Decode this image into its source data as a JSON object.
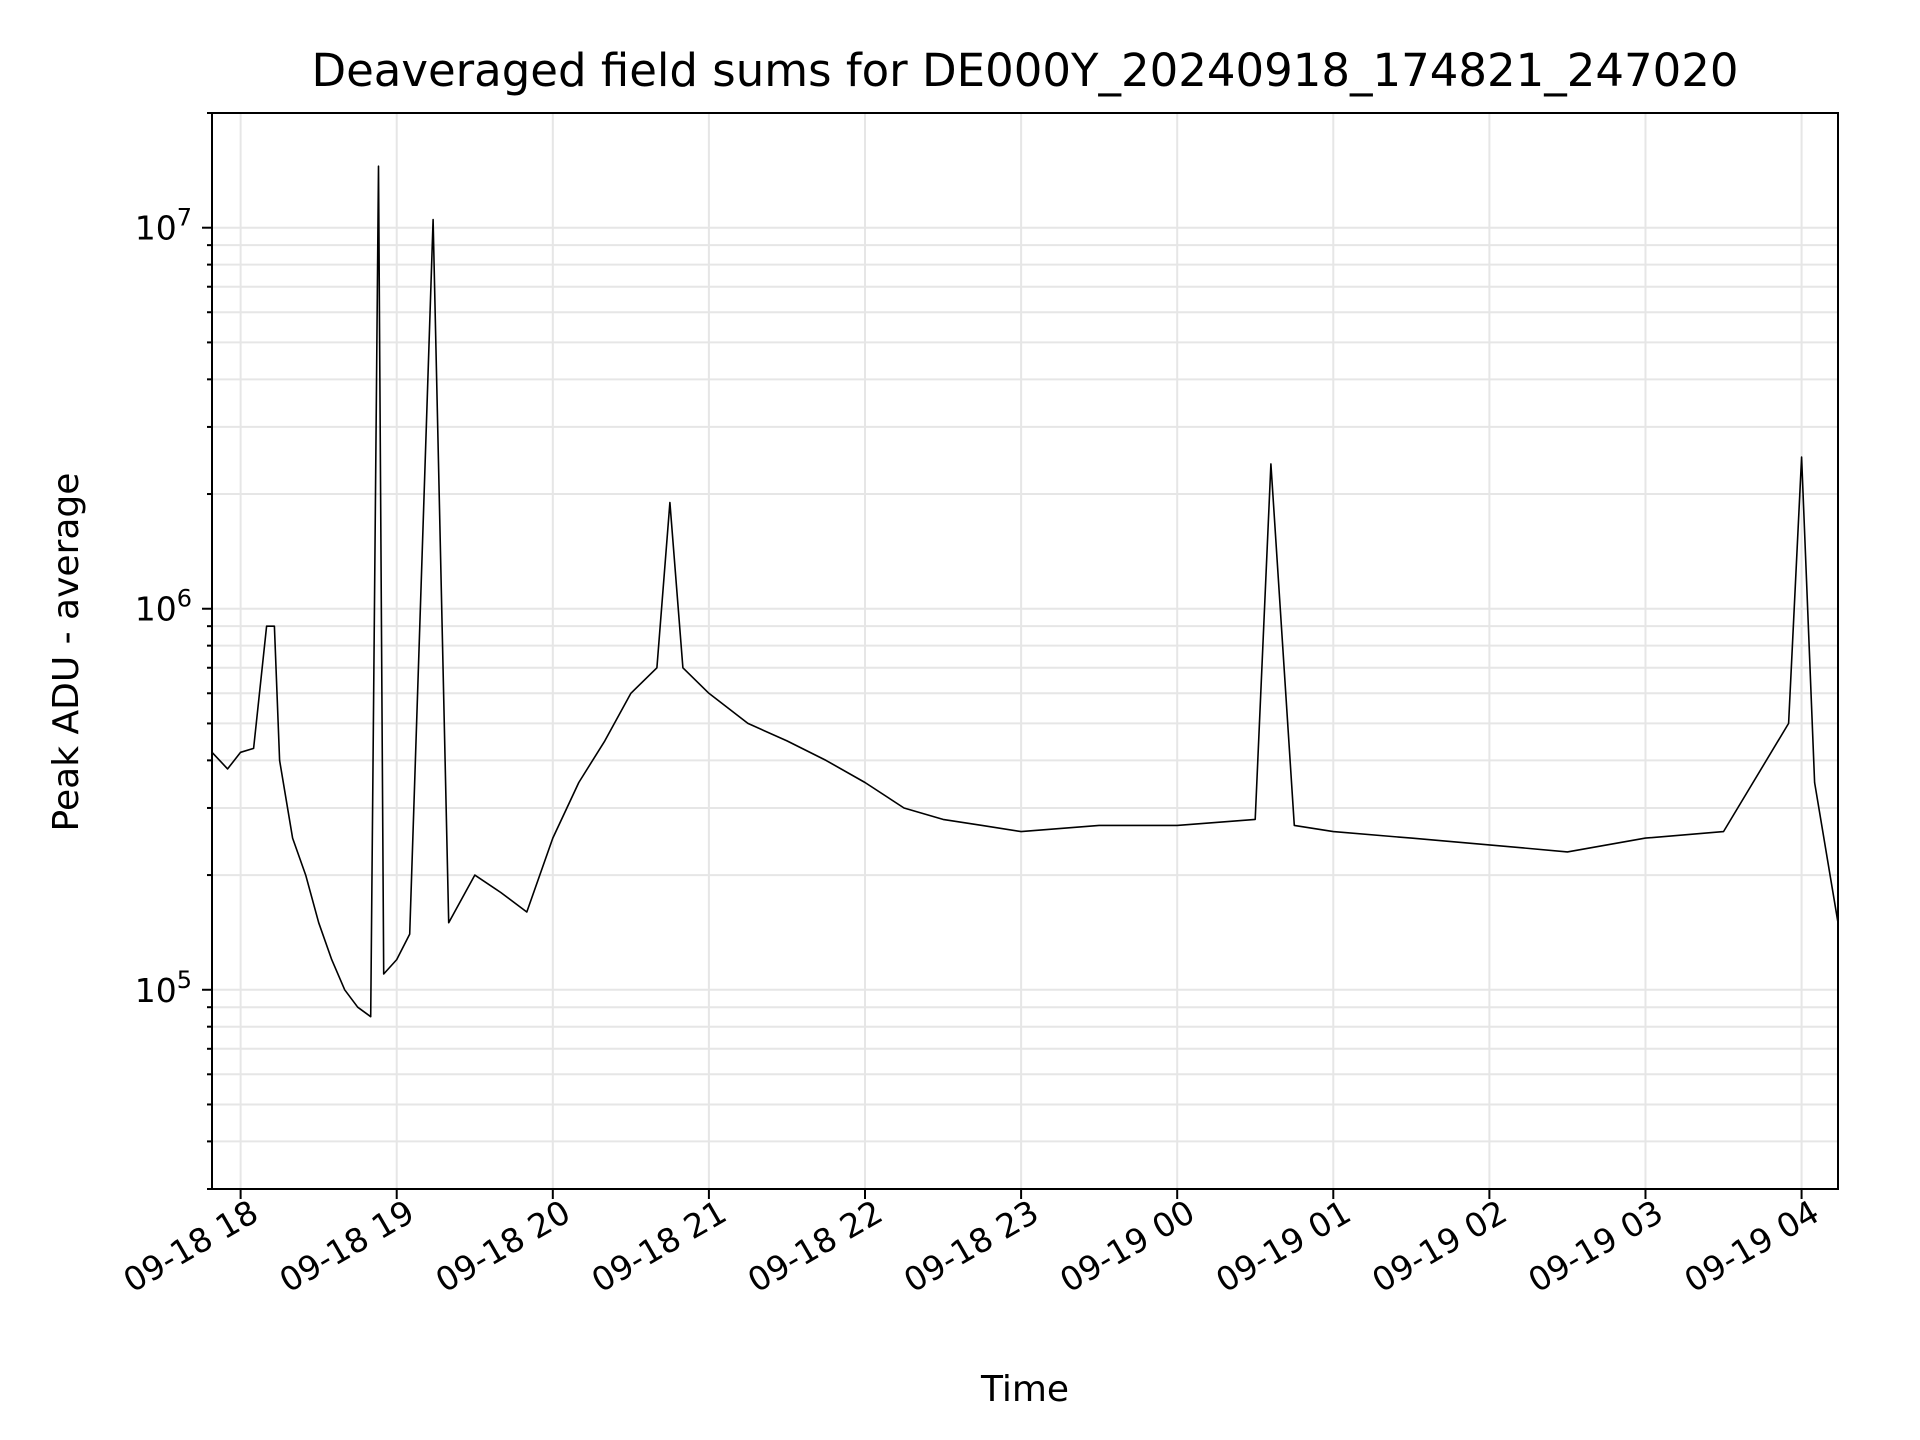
{
  "chart_data": {
    "type": "line",
    "title": "Deaveraged field sums for DE000Y_20240918_174821_247020",
    "xlabel": "Time",
    "ylabel": "Peak ADU - average",
    "x_tick_labels": [
      "09-18 18",
      "09-18 19",
      "09-18 20",
      "09-18 21",
      "09-18 22",
      "09-18 23",
      "09-19 00",
      "09-19 01",
      "09-19 02",
      "09-19 03",
      "09-19 04"
    ],
    "y_tick_labels": [
      {
        "base": "10",
        "exp": "5",
        "value": 100000
      },
      {
        "base": "10",
        "exp": "6",
        "value": 1000000
      },
      {
        "base": "10",
        "exp": "7",
        "value": 10000000
      }
    ],
    "y_scale": "log",
    "ylim": [
      30000,
      20000000
    ],
    "xlim": [
      "2024-09-18 17:49",
      "2024-09-19 04:14"
    ],
    "grid": true,
    "line_color": "#000000",
    "series": [
      {
        "points": [
          [
            "2024-09-18 17:49",
            420000
          ],
          [
            "2024-09-18 17:55",
            380000
          ],
          [
            "2024-09-18 18:00",
            420000
          ],
          [
            "2024-09-18 18:05",
            430000
          ],
          [
            "2024-09-18 18:10",
            900000
          ],
          [
            "2024-09-18 18:13",
            900000
          ],
          [
            "2024-09-18 18:15",
            400000
          ],
          [
            "2024-09-18 18:20",
            250000
          ],
          [
            "2024-09-18 18:25",
            200000
          ],
          [
            "2024-09-18 18:30",
            150000
          ],
          [
            "2024-09-18 18:35",
            120000
          ],
          [
            "2024-09-18 18:40",
            100000
          ],
          [
            "2024-09-18 18:45",
            90000
          ],
          [
            "2024-09-18 18:50",
            85000
          ],
          [
            "2024-09-18 18:53",
            14500000
          ],
          [
            "2024-09-18 18:55",
            110000
          ],
          [
            "2024-09-18 19:00",
            120000
          ],
          [
            "2024-09-18 19:05",
            140000
          ],
          [
            "2024-09-18 19:14",
            10500000
          ],
          [
            "2024-09-18 19:20",
            150000
          ],
          [
            "2024-09-18 19:30",
            200000
          ],
          [
            "2024-09-18 19:40",
            180000
          ],
          [
            "2024-09-18 19:50",
            160000
          ],
          [
            "2024-09-18 20:00",
            250000
          ],
          [
            "2024-09-18 20:10",
            350000
          ],
          [
            "2024-09-18 20:20",
            450000
          ],
          [
            "2024-09-18 20:30",
            600000
          ],
          [
            "2024-09-18 20:40",
            700000
          ],
          [
            "2024-09-18 20:45",
            1900000
          ],
          [
            "2024-09-18 20:50",
            700000
          ],
          [
            "2024-09-18 21:00",
            600000
          ],
          [
            "2024-09-18 21:15",
            500000
          ],
          [
            "2024-09-18 21:30",
            450000
          ],
          [
            "2024-09-18 21:45",
            400000
          ],
          [
            "2024-09-18 22:00",
            350000
          ],
          [
            "2024-09-18 22:15",
            300000
          ],
          [
            "2024-09-18 22:30",
            280000
          ],
          [
            "2024-09-18 22:45",
            270000
          ],
          [
            "2024-09-18 23:00",
            260000
          ],
          [
            "2024-09-18 23:30",
            270000
          ],
          [
            "2024-09-19 00:00",
            270000
          ],
          [
            "2024-09-19 00:30",
            280000
          ],
          [
            "2024-09-19 00:36",
            2400000
          ],
          [
            "2024-09-19 00:45",
            270000
          ],
          [
            "2024-09-19 01:00",
            260000
          ],
          [
            "2024-09-19 01:30",
            250000
          ],
          [
            "2024-09-19 02:00",
            240000
          ],
          [
            "2024-09-19 02:30",
            230000
          ],
          [
            "2024-09-19 03:00",
            250000
          ],
          [
            "2024-09-19 03:30",
            260000
          ],
          [
            "2024-09-19 03:55",
            500000
          ],
          [
            "2024-09-19 04:00",
            2500000
          ],
          [
            "2024-09-19 04:05",
            350000
          ],
          [
            "2024-09-19 04:14",
            150000
          ]
        ]
      }
    ]
  }
}
